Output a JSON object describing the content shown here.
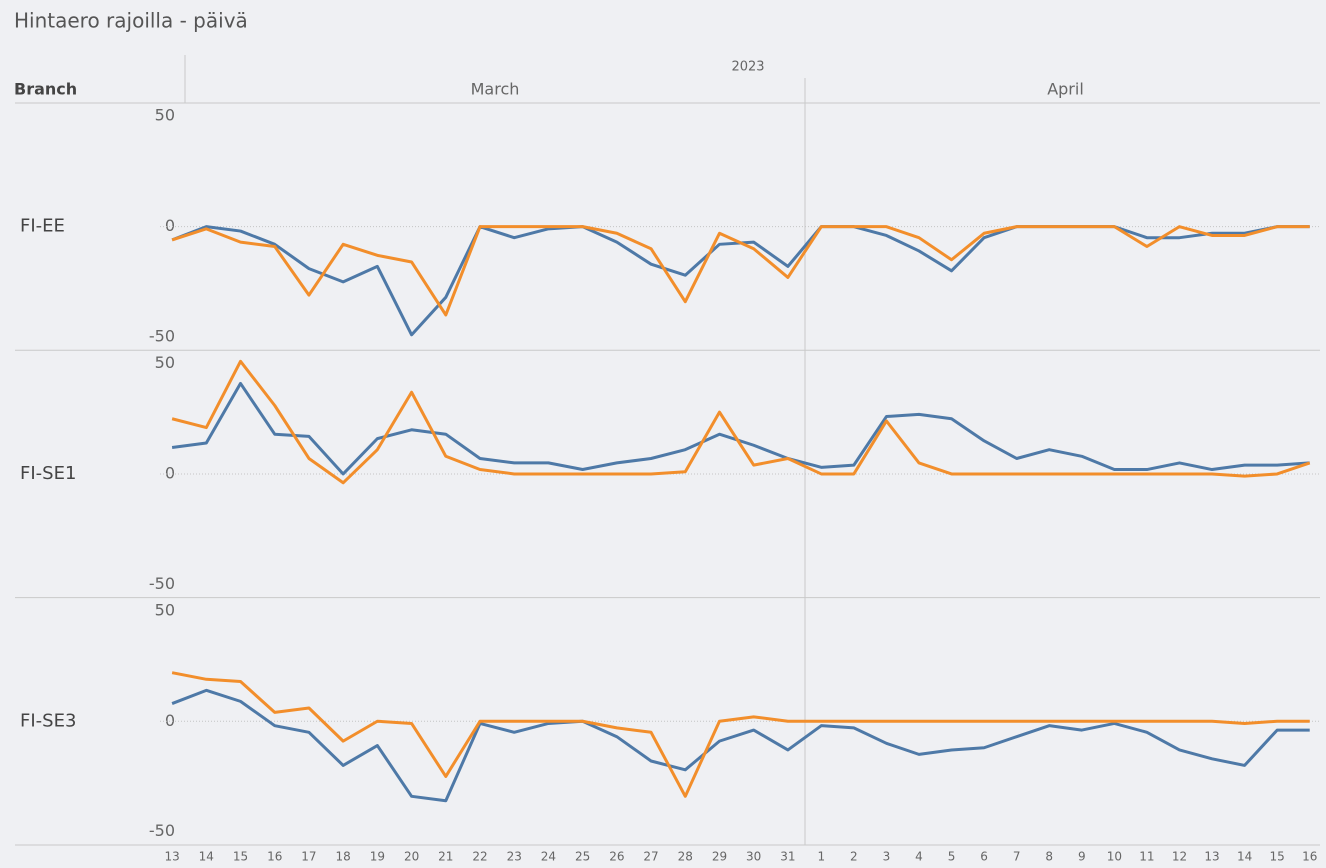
{
  "title": "Hintaero rajoilla - päivä",
  "row_header": "Branch",
  "year": "2023",
  "months": [
    {
      "name": "March",
      "days": [
        13,
        14,
        15,
        16,
        17,
        18,
        19,
        20,
        21,
        22,
        23,
        24,
        25,
        26,
        27,
        28,
        29,
        30,
        31
      ]
    },
    {
      "name": "April",
      "days": [
        1,
        2,
        3,
        4,
        5,
        6,
        7,
        8,
        9,
        10,
        11,
        12,
        13,
        14,
        15,
        16
      ]
    }
  ],
  "chart_data": [
    {
      "type": "line",
      "name": "FI-EE",
      "ylim": [
        -56,
        56
      ],
      "yticks": [
        -50,
        0,
        50
      ],
      "zero_line": true,
      "series": [
        {
          "color": "#4e79a7",
          "values": [
            -6,
            0,
            -2,
            -8,
            -19,
            -25,
            -18,
            -49,
            -32,
            0,
            -5,
            -1,
            0,
            -7,
            -17,
            -22,
            -8,
            -7,
            -18,
            0,
            0,
            -4,
            -11,
            -20,
            -5,
            0,
            0,
            0,
            0,
            -5,
            -5,
            -3,
            -3,
            0,
            0
          ]
        },
        {
          "color": "#f28e2b",
          "values": [
            -6,
            -1,
            -7,
            -9,
            -31,
            -8,
            -13,
            -16,
            -40,
            0,
            0,
            0,
            0,
            -3,
            -10,
            -34,
            -3,
            -10,
            -23,
            0,
            0,
            0,
            -5,
            -15,
            -3,
            0,
            0,
            0,
            0,
            -9,
            0,
            -4,
            -4,
            0,
            0
          ]
        }
      ]
    },
    {
      "type": "line",
      "name": "FI-SE1",
      "ylim": [
        -56,
        56
      ],
      "yticks": [
        -50,
        0,
        50
      ],
      "zero_line": true,
      "series": [
        {
          "color": "#4e79a7",
          "values": [
            12,
            14,
            41,
            18,
            17,
            0,
            16,
            20,
            18,
            7,
            5,
            5,
            2,
            5,
            7,
            11,
            18,
            13,
            7,
            3,
            4,
            26,
            27,
            25,
            15,
            7,
            11,
            8,
            2,
            2,
            5,
            2,
            4,
            4,
            5
          ]
        },
        {
          "color": "#f28e2b",
          "values": [
            25,
            21,
            51,
            31,
            7,
            -4,
            11,
            37,
            8,
            2,
            0,
            0,
            0,
            0,
            0,
            1,
            28,
            4,
            7,
            0,
            0,
            24,
            5,
            0,
            0,
            0,
            0,
            0,
            0,
            0,
            0,
            0,
            -1,
            0,
            5
          ]
        }
      ]
    },
    {
      "type": "line",
      "name": "FI-SE3",
      "ylim": [
        -56,
        56
      ],
      "yticks": [
        -50,
        0,
        50
      ],
      "zero_line": true,
      "series": [
        {
          "color": "#4e79a7",
          "values": [
            8,
            14,
            9,
            -2,
            -5,
            -20,
            -11,
            -34,
            -36,
            -1,
            -5,
            -1,
            0,
            -7,
            -18,
            -22,
            -9,
            -4,
            -13,
            -2,
            -3,
            -10,
            -15,
            -13,
            -12,
            -7,
            -2,
            -4,
            -1,
            -5,
            -13,
            -17,
            -20,
            -4,
            -4
          ]
        },
        {
          "color": "#f28e2b",
          "values": [
            22,
            19,
            18,
            4,
            6,
            -9,
            0,
            -1,
            -25,
            0,
            0,
            0,
            0,
            -3,
            -5,
            -34,
            0,
            2,
            0,
            0,
            0,
            0,
            0,
            0,
            0,
            0,
            0,
            0,
            0,
            0,
            0,
            0,
            -1,
            0,
            0
          ]
        }
      ]
    }
  ]
}
